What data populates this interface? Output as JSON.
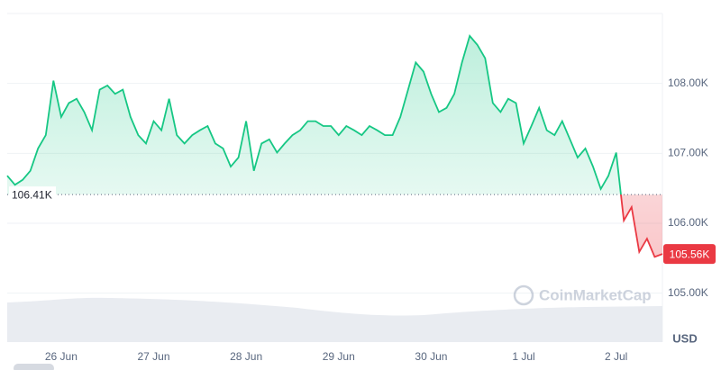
{
  "chart_data": {
    "type": "line",
    "categories": [
      null,
      null,
      null,
      null,
      null,
      null,
      null,
      "26 Jun",
      null,
      null,
      null,
      null,
      null,
      null,
      null,
      null,
      null,
      null,
      null,
      "27 Jun",
      null,
      null,
      null,
      null,
      null,
      null,
      null,
      null,
      null,
      null,
      null,
      "28 Jun",
      null,
      null,
      null,
      null,
      null,
      null,
      null,
      null,
      null,
      null,
      null,
      "29 Jun",
      null,
      null,
      null,
      null,
      null,
      null,
      null,
      null,
      null,
      null,
      null,
      "30 Jun",
      null,
      null,
      null,
      null,
      null,
      null,
      null,
      null,
      null,
      null,
      null,
      "1 Jul",
      null,
      null,
      null,
      null,
      null,
      null,
      null,
      null,
      null,
      null,
      null,
      "2 Jul",
      null,
      null,
      null,
      null,
      null,
      null
    ],
    "series": [
      {
        "color": "#16c784",
        "values": [
          106.68,
          106.55,
          106.62,
          106.75,
          107.07,
          107.26,
          108.04,
          107.52,
          107.72,
          107.78,
          107.59,
          107.33,
          107.91,
          107.97,
          107.85,
          107.91,
          107.52,
          107.26,
          107.14,
          107.46,
          107.33,
          107.78,
          107.26,
          107.14,
          107.26,
          107.33,
          107.39,
          107.14,
          107.07,
          106.81,
          106.94,
          107.46,
          106.75,
          107.14,
          107.2,
          107.01,
          107.14,
          107.26,
          107.33,
          107.46,
          107.46,
          107.39,
          107.39,
          107.26,
          107.39,
          107.33,
          107.26,
          107.39,
          107.33,
          107.26,
          107.26,
          107.52,
          107.91,
          108.3,
          108.17,
          107.85,
          107.59,
          107.65,
          107.85,
          108.3,
          108.68,
          108.55,
          108.36,
          107.72,
          107.59,
          107.78,
          107.72,
          107.14,
          107.39,
          107.65,
          107.33,
          107.26,
          107.46,
          107.2,
          106.94,
          107.07,
          106.81,
          106.49,
          106.68,
          107.01,
          106.04,
          106.23,
          105.59,
          105.78,
          105.52,
          105.56
        ]
      }
    ],
    "below_color": "#ea3943",
    "baseline": {
      "value": 106.41,
      "label": "106.41K"
    },
    "current_label": "105.56K",
    "ylim": [
      104.3,
      109.0
    ],
    "yticks": [
      {
        "value": 105,
        "label": "105.00K"
      },
      {
        "value": 106,
        "label": "106.00K"
      },
      {
        "value": 107,
        "label": "107.00K"
      },
      {
        "value": 108,
        "label": "108.00K"
      }
    ],
    "y_unit_label": "USD",
    "watermark": "CoinMarketCap",
    "grid": true
  }
}
